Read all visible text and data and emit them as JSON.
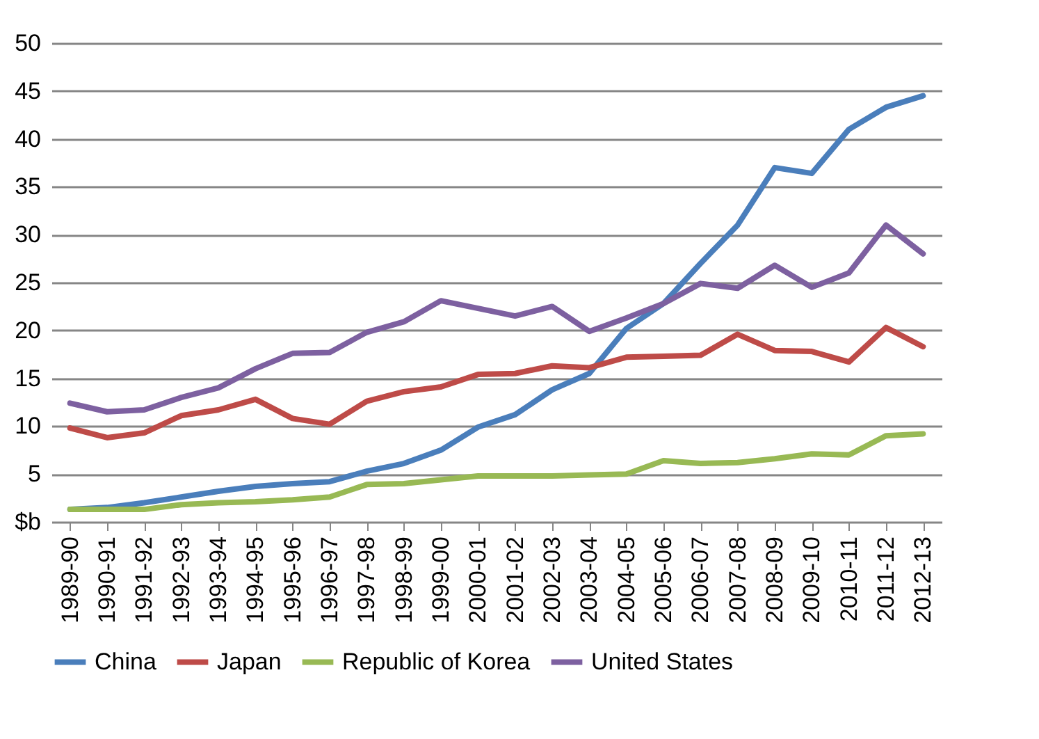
{
  "chart_data": {
    "type": "line",
    "categories": [
      "1989-90",
      "1990-91",
      "1991-92",
      "1992-93",
      "1993-94",
      "1994-95",
      "1995-96",
      "1996-97",
      "1997-98",
      "1998-99",
      "1999-00",
      "2000-01",
      "2001-02",
      "2002-03",
      "2003-04",
      "2004-05",
      "2005-06",
      "2006-07",
      "2007-08",
      "2008-09",
      "2009-10",
      "2010-11",
      "2011-12",
      "2012-13"
    ],
    "series": [
      {
        "name": "China",
        "color": "#4a7ebb",
        "values": [
          1.3,
          1.5,
          2.0,
          2.6,
          3.2,
          3.7,
          4.0,
          4.2,
          5.3,
          6.1,
          7.5,
          9.9,
          11.2,
          13.8,
          15.5,
          20.2,
          22.8,
          27.0,
          31.0,
          37.0,
          36.4,
          41.0,
          43.3,
          44.5
        ]
      },
      {
        "name": "Japan",
        "color": "#be4b48",
        "values": [
          9.8,
          8.8,
          9.3,
          11.1,
          11.7,
          12.8,
          10.8,
          10.2,
          12.6,
          13.6,
          14.1,
          15.4,
          15.5,
          16.3,
          16.1,
          17.2,
          17.3,
          17.4,
          19.6,
          17.9,
          17.8,
          16.7,
          20.3,
          18.3
        ]
      },
      {
        "name": "Republic of Korea",
        "color": "#98b954",
        "values": [
          1.3,
          1.3,
          1.3,
          1.8,
          2.0,
          2.1,
          2.3,
          2.6,
          3.9,
          4.0,
          4.4,
          4.8,
          4.8,
          4.8,
          4.9,
          5.0,
          6.4,
          6.1,
          6.2,
          6.6,
          7.1,
          7.0,
          9.0,
          9.2
        ]
      },
      {
        "name": "United States",
        "color": "#7d60a0",
        "values": [
          12.4,
          11.5,
          11.7,
          13.0,
          14.0,
          16.0,
          17.6,
          17.7,
          19.8,
          20.9,
          23.1,
          22.3,
          21.5,
          22.5,
          19.9,
          21.3,
          22.8,
          24.9,
          24.4,
          26.8,
          24.5,
          26.0,
          31.0,
          28.0
        ]
      }
    ],
    "ylim": [
      0,
      50
    ],
    "yticks": [
      {
        "value": 0,
        "label": "$b"
      },
      5,
      10,
      15,
      20,
      25,
      30,
      35,
      40,
      45,
      50
    ],
    "grid": "y",
    "legend": "bottom",
    "line_style": "solid",
    "marker": "none"
  }
}
